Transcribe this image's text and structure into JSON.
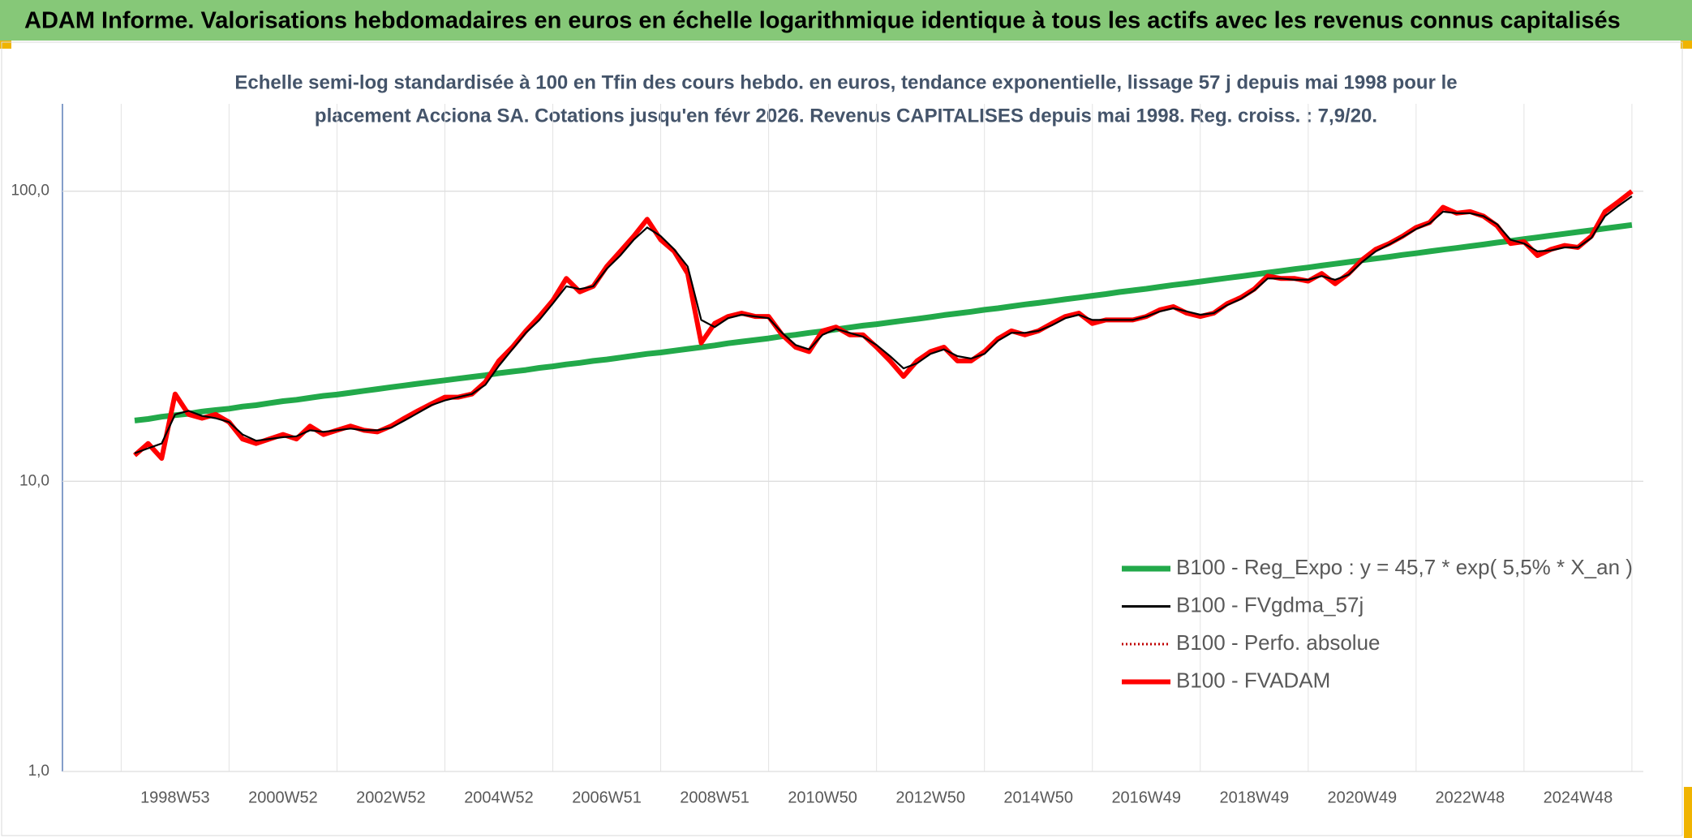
{
  "chart_data": {
    "type": "line",
    "title": "ADAM Informe. Valorisations hebdomadaires en euros en échelle logarithmique identique à tous les actifs avec les revenus connus capitalisés",
    "subtitle": [
      "Echelle semi-log standardisée à 100 en Tfin des cours hebdo. en euros, tendance exponentielle, lissage 57 j depuis mai 1998 pour le",
      "placement Acciona SA. Cotations jusqu'en févr 2026. Revenus CAPITALISES depuis mai 1998. Reg. croiss. : 7,9/20."
    ],
    "log_scale": true,
    "grid": true,
    "ylim": [
      1,
      200
    ],
    "yticks": [
      {
        "value": 1,
        "label": "1,0"
      },
      {
        "value": 10,
        "label": "10,0"
      },
      {
        "value": 100,
        "label": "100,0"
      }
    ],
    "categories": [
      null,
      null,
      null,
      "1998W53",
      null,
      null,
      null,
      null,
      null,
      null,
      null,
      "2000W52",
      null,
      null,
      null,
      null,
      null,
      null,
      null,
      "2002W52",
      null,
      null,
      null,
      null,
      null,
      null,
      null,
      "2004W52",
      null,
      null,
      null,
      null,
      null,
      null,
      null,
      "2006W51",
      null,
      null,
      null,
      null,
      null,
      null,
      null,
      "2008W51",
      null,
      null,
      null,
      null,
      null,
      null,
      null,
      "2010W50",
      null,
      null,
      null,
      null,
      null,
      null,
      null,
      "2012W50",
      null,
      null,
      null,
      null,
      null,
      null,
      null,
      "2014W50",
      null,
      null,
      null,
      null,
      null,
      null,
      null,
      "2016W49",
      null,
      null,
      null,
      null,
      null,
      null,
      null,
      "2018W49",
      null,
      null,
      null,
      null,
      null,
      null,
      null,
      "2020W49",
      null,
      null,
      null,
      null,
      null,
      null,
      null,
      "2022W48",
      null,
      null,
      null,
      null,
      null,
      null,
      null,
      "2024W48",
      null,
      null,
      null,
      null
    ],
    "series": [
      {
        "name": "B100 - Reg_Expo : y = 45,7 * exp( 5,5% *  X_an )",
        "color": "#22a94a",
        "style": "solid",
        "values": [
          16.2,
          16.4,
          16.7,
          16.9,
          17.1,
          17.4,
          17.6,
          17.8,
          18.1,
          18.3,
          18.6,
          18.9,
          19.1,
          19.4,
          19.7,
          19.9,
          20.2,
          20.5,
          20.8,
          21.1,
          21.4,
          21.7,
          22.0,
          22.3,
          22.6,
          22.9,
          23.2,
          23.6,
          23.9,
          24.2,
          24.6,
          24.9,
          25.3,
          25.6,
          26.0,
          26.3,
          26.7,
          27.1,
          27.5,
          27.8,
          28.2,
          28.6,
          29.0,
          29.4,
          29.9,
          30.3,
          30.7,
          31.1,
          31.6,
          32.0,
          32.5,
          32.9,
          33.4,
          33.9,
          34.4,
          34.8,
          35.3,
          35.8,
          36.3,
          36.8,
          37.4,
          37.9,
          38.4,
          39.0,
          39.5,
          40.1,
          40.7,
          41.2,
          41.8,
          42.4,
          43.0,
          43.6,
          44.2,
          44.9,
          45.5,
          46.1,
          46.8,
          47.5,
          48.1,
          48.8,
          49.5,
          50.2,
          50.9,
          51.6,
          52.4,
          53.1,
          53.9,
          54.6,
          55.4,
          56.2,
          57.0,
          57.8,
          58.6,
          59.4,
          60.3,
          61.1,
          62.0,
          62.9,
          63.7,
          64.6,
          65.5,
          66.5,
          67.4,
          68.4,
          69.3,
          70.3,
          71.3,
          72.3,
          73.3,
          74.4,
          75.4,
          76.5
        ]
      },
      {
        "name": "B100 - FVgdma_57j",
        "color": "#000000",
        "style": "solid",
        "values": [
          12.5,
          13,
          13.5,
          17,
          17.5,
          16.8,
          16.5,
          16,
          14.5,
          13.8,
          14,
          14.2,
          14.3,
          15,
          14.8,
          15,
          15.2,
          15,
          15,
          15.3,
          16.2,
          17.2,
          18.3,
          19,
          19.5,
          20,
          21.5,
          25,
          28.5,
          32.5,
          36,
          41,
          47,
          46,
          47,
          54,
          60,
          68,
          75,
          70,
          63,
          55,
          36,
          34,
          36.5,
          37.5,
          37,
          36.5,
          32.5,
          29.5,
          28.5,
          32,
          33.5,
          32.5,
          31.5,
          29.5,
          27,
          24.5,
          25.5,
          27.5,
          28.5,
          27,
          26.5,
          27.5,
          30.5,
          32.5,
          32.5,
          33,
          34.5,
          36.5,
          37.5,
          36,
          36,
          36,
          36,
          37,
          38.5,
          39.5,
          38.5,
          37.5,
          38,
          40.5,
          42.5,
          45.5,
          50,
          50,
          49.5,
          49.5,
          51,
          49.5,
          51.5,
          57,
          62,
          65.5,
          69.5,
          74,
          77.5,
          85,
          84,
          84,
          82,
          77,
          68,
          66,
          62,
          62.5,
          64,
          64,
          69,
          82,
          89,
          96
        ]
      },
      {
        "name": "B100 - Perfo. absolue",
        "color": "#c00000",
        "style": "dotted",
        "values": [
          12.3,
          13.5,
          12,
          20,
          17,
          16.5,
          17,
          16,
          14,
          13.5,
          14,
          14.5,
          14,
          15.5,
          14.5,
          15,
          15.5,
          15,
          14.8,
          15.5,
          16.5,
          17.5,
          18.5,
          19.5,
          19.5,
          20,
          22,
          26,
          29,
          33,
          37,
          42,
          50,
          45,
          47,
          55,
          62,
          70,
          80,
          68,
          62,
          52,
          30,
          35,
          37,
          38,
          37,
          37,
          32,
          29,
          28,
          33,
          34,
          32,
          32,
          29,
          26,
          23,
          26,
          28,
          29,
          26,
          26,
          28,
          31,
          33,
          32,
          33,
          35,
          37,
          38,
          35,
          36,
          36,
          36,
          37,
          39,
          40,
          38,
          37,
          38,
          41,
          43,
          46,
          51,
          50,
          50,
          49,
          52,
          48,
          52,
          58,
          63,
          66,
          70,
          75,
          78,
          88,
          84,
          85,
          82,
          76,
          66,
          67,
          60,
          63,
          65,
          64,
          70,
          85,
          92,
          100
        ]
      },
      {
        "name": "B100 - FVADAM",
        "color": "#ff0000",
        "style": "solid",
        "values": [
          12.3,
          13.5,
          12,
          20,
          17,
          16.5,
          17,
          16,
          14,
          13.5,
          14,
          14.5,
          14,
          15.5,
          14.5,
          15,
          15.5,
          15,
          14.8,
          15.5,
          16.5,
          17.5,
          18.5,
          19.5,
          19.5,
          20,
          22,
          26,
          29,
          33,
          37,
          42,
          50,
          45,
          47,
          55,
          62,
          70,
          80,
          68,
          62,
          52,
          30,
          35,
          37,
          38,
          37,
          37,
          32,
          29,
          28,
          33,
          34,
          32,
          32,
          29,
          26,
          23,
          26,
          28,
          29,
          26,
          26,
          28,
          31,
          33,
          32,
          33,
          35,
          37,
          38,
          35,
          36,
          36,
          36,
          37,
          39,
          40,
          38,
          37,
          38,
          41,
          43,
          46,
          51,
          50,
          50,
          49,
          52,
          48,
          52,
          58,
          63,
          66,
          70,
          75,
          78,
          88,
          84,
          85,
          82,
          76,
          66,
          67,
          60,
          63,
          65,
          64,
          70,
          85,
          92,
          100
        ]
      }
    ]
  }
}
